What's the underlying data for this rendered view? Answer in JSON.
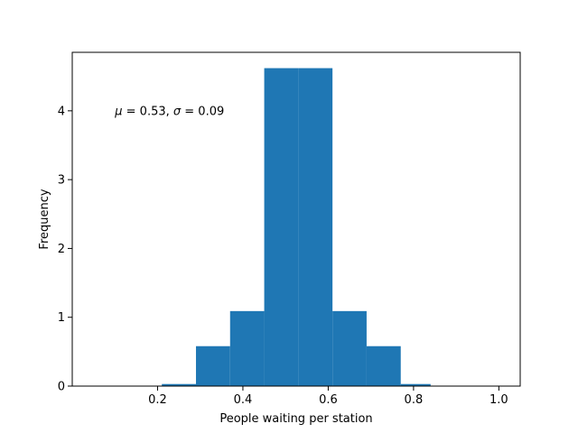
{
  "chart_data": {
    "type": "bar",
    "title": "",
    "xlabel": "People waiting per station",
    "ylabel": "Frequency",
    "xlim": [
      0.0,
      1.05
    ],
    "ylim": [
      0,
      4.85
    ],
    "xticks": [
      0.2,
      0.4,
      0.6,
      0.8,
      1.0
    ],
    "xtick_labels": [
      "0.2",
      "0.4",
      "0.6",
      "0.8",
      "1.0"
    ],
    "yticks": [
      0,
      1,
      2,
      3,
      4
    ],
    "ytick_labels": [
      "0",
      "1",
      "2",
      "3",
      "4"
    ],
    "bins": [
      {
        "x0": 0.21,
        "x1": 0.29,
        "value": 0.03
      },
      {
        "x0": 0.29,
        "x1": 0.37,
        "value": 0.58
      },
      {
        "x0": 0.37,
        "x1": 0.45,
        "value": 1.09
      },
      {
        "x0": 0.45,
        "x1": 0.53,
        "value": 4.62
      },
      {
        "x0": 0.53,
        "x1": 0.61,
        "value": 4.62
      },
      {
        "x0": 0.61,
        "x1": 0.69,
        "value": 1.09
      },
      {
        "x0": 0.69,
        "x1": 0.77,
        "value": 0.58
      },
      {
        "x0": 0.77,
        "x1": 0.84,
        "value": 0.03
      }
    ],
    "bar_color": "#1f77b4",
    "annotation": {
      "mu_symbol": "μ",
      "mu_eq": " = 0.53,  ",
      "sigma_symbol": "σ",
      "sigma_eq": " = 0.09",
      "x": 0.1,
      "y": 4.0
    }
  }
}
